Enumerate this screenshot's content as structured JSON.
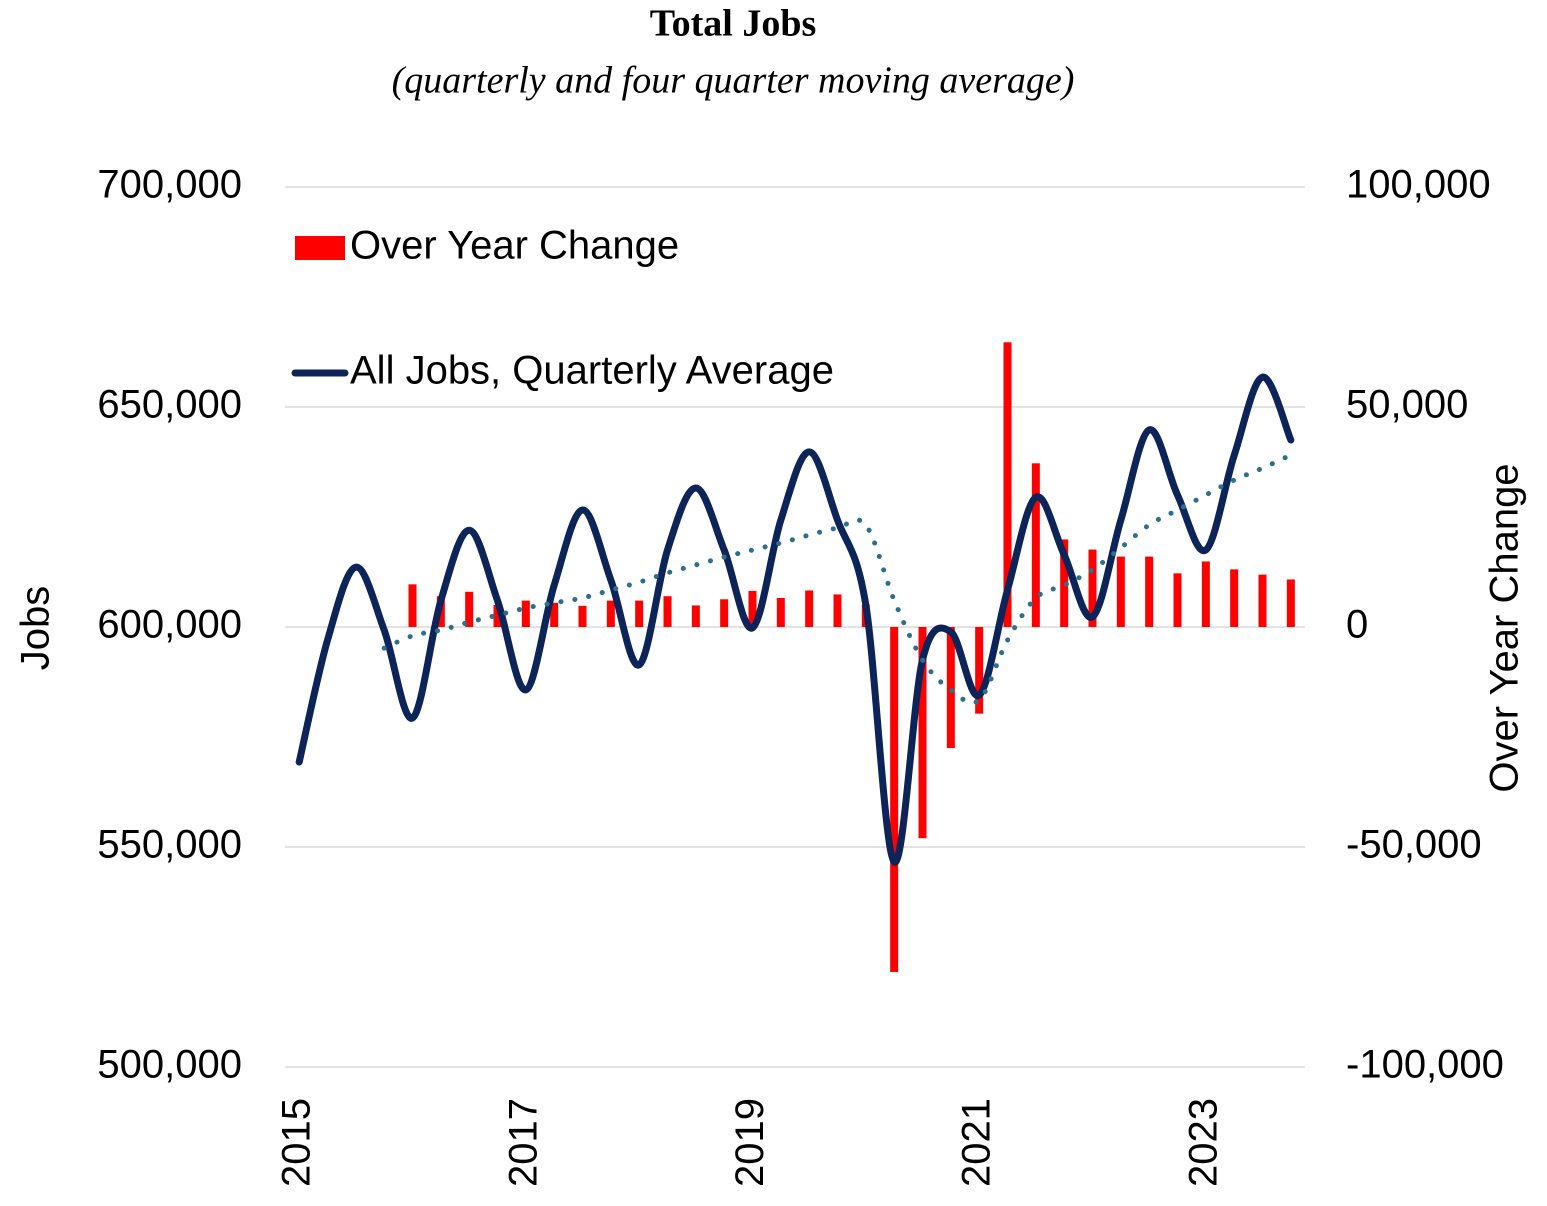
{
  "chart_data": {
    "type": "combo",
    "title": "Total Jobs",
    "subtitle": "(quarterly and four quarter moving average)",
    "y_label": "Jobs",
    "y2_label": "Over Year Change",
    "categories": [
      "2015",
      null,
      null,
      null,
      null,
      null,
      null,
      null,
      "2017",
      null,
      null,
      null,
      null,
      null,
      null,
      null,
      "2019",
      null,
      null,
      null,
      null,
      null,
      null,
      null,
      "2021",
      null,
      null,
      null,
      null,
      null,
      null,
      null,
      "2023",
      null,
      null,
      null
    ],
    "ylim": [
      500000,
      700000
    ],
    "yticks": [
      {
        "value": 500000,
        "label": "500,000"
      },
      {
        "value": 550000,
        "label": "550,000"
      },
      {
        "value": 600000,
        "label": "600,000"
      },
      {
        "value": 650000,
        "label": "650,000"
      },
      {
        "value": 700000,
        "label": "700,000"
      }
    ],
    "y2lim": [
      -100000,
      100000
    ],
    "y2ticks": [
      {
        "value": -100000,
        "label": "-100,000"
      },
      {
        "value": -50000,
        "label": "-50,000"
      },
      0,
      {
        "value": 50000,
        "label": "50,000"
      },
      {
        "value": 100000,
        "label": "100,000"
      }
    ],
    "grid": true,
    "legend": "top-left",
    "series": [
      {
        "name": "Over Year Change",
        "kind": "bar",
        "axis": "y2",
        "color": "#ff0000",
        "values": [
          null,
          null,
          null,
          null,
          9700,
          7000,
          8000,
          5000,
          6000,
          5500,
          4800,
          6000,
          6000,
          7000,
          4900,
          6300,
          8200,
          6600,
          8300,
          7400,
          5100,
          -78400,
          -48000,
          -27500,
          -19700,
          64700,
          37200,
          19900,
          17600,
          16000,
          16000,
          12200,
          14900,
          13100,
          11900,
          10800
        ]
      },
      {
        "name": "All Jobs, Quarterly Average",
        "kind": "line",
        "color": "#0d2459",
        "values": [
          569300,
          597000,
          613600,
          599300,
          579300,
          606000,
          622000,
          606000,
          585700,
          609500,
          626600,
          610700,
          591400,
          617500,
          631600,
          617500,
          599800,
          624300,
          639800,
          624300,
          605000,
          546600,
          592500,
          598900,
          584500,
          608400,
          629500,
          616400,
          602300,
          624300,
          644800,
          630000,
          617500,
          639000,
          656800,
          642500
        ]
      },
      {
        "kind": "dotted",
        "color": "#2e6f8e",
        "values": [
          null,
          null,
          null,
          595200,
          598000,
          599300,
          601100,
          602700,
          604300,
          605500,
          606600,
          608400,
          610200,
          612300,
          614100,
          615900,
          617500,
          619100,
          620900,
          622500,
          623200,
          606100,
          592500,
          585700,
          583400,
          597000,
          606600,
          609500,
          613000,
          618000,
          623200,
          626600,
          630000,
          633400,
          636100,
          639100
        ]
      }
    ]
  }
}
